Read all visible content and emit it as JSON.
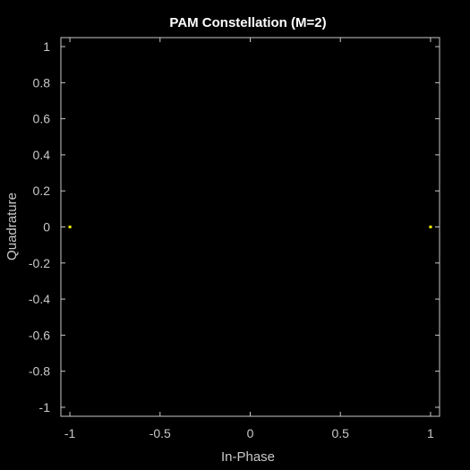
{
  "chart_data": {
    "type": "scatter",
    "title": "PAM Constellation (M=2)",
    "xlabel": "In-Phase",
    "ylabel": "Quadrature",
    "xlim": [
      -1.05,
      1.05
    ],
    "ylim": [
      -1.05,
      1.05
    ],
    "xticks": [
      -1,
      -0.5,
      0,
      0.5,
      1
    ],
    "xtick_labels": [
      "-1",
      "-0.5",
      "0",
      "0.5",
      "1"
    ],
    "yticks": [
      1,
      0.8,
      0.6,
      0.4,
      0.2,
      0,
      -0.2,
      -0.4,
      -0.6,
      -0.8,
      -1
    ],
    "ytick_labels": [
      "1",
      "0.8",
      "0.6",
      "0.4",
      "0.2",
      "0",
      "-0.2",
      "-0.4",
      "-0.6",
      "-0.8",
      "-1"
    ],
    "grid": false,
    "series": [
      {
        "x": [
          -1,
          1
        ],
        "y": [
          0,
          0
        ]
      }
    ],
    "colors": {
      "background": "#000000",
      "axes": "#c8c8c8",
      "marker": "#ffff00",
      "title": "#ffffff"
    }
  }
}
